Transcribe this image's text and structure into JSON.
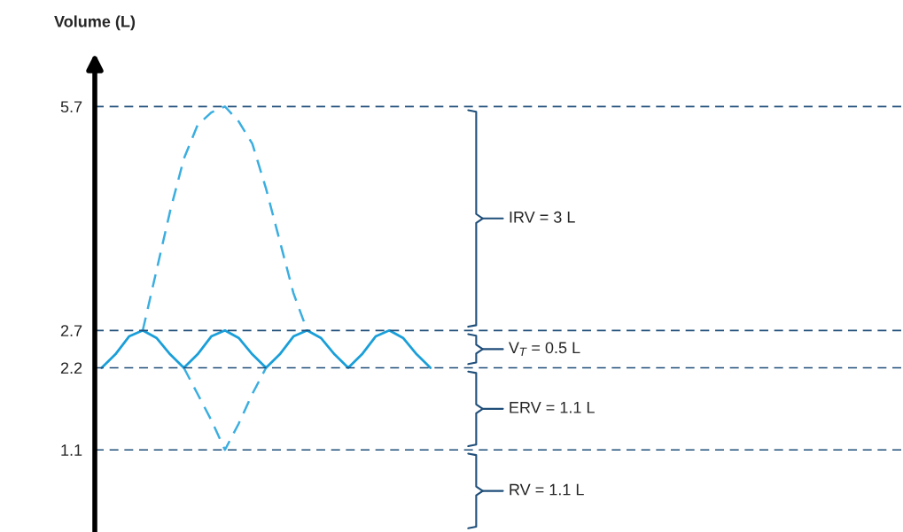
{
  "chart_data": {
    "type": "line",
    "ylabel": "Volume (L)",
    "categories": [
      null,
      null,
      null,
      null,
      null,
      null,
      null,
      null,
      null,
      null,
      null,
      null,
      null,
      null,
      null,
      null,
      null,
      null,
      null,
      null,
      null,
      null,
      null,
      null,
      null,
      null,
      null,
      null,
      null,
      null,
      null,
      null,
      null,
      null,
      null,
      null,
      null,
      null,
      null,
      null,
      null,
      null,
      null,
      null,
      null,
      null,
      null,
      null,
      null,
      null,
      null,
      null,
      null,
      null,
      null,
      null,
      null,
      null,
      null
    ],
    "series": [
      {
        "color": "#1a9fd9",
        "line_style": "solid",
        "values": [
          2.2,
          2.38,
          2.62,
          2.7,
          2.6,
          2.38,
          2.2,
          2.38,
          2.62,
          2.7,
          2.6,
          2.38,
          2.2,
          2.38,
          2.62,
          2.7,
          2.6,
          2.38,
          2.2,
          2.38,
          2.62,
          2.7,
          2.6,
          2.38,
          2.2,
          null,
          null,
          null,
          null,
          null,
          null,
          null,
          null,
          null,
          null,
          null,
          null,
          null,
          null,
          null,
          null,
          null,
          null,
          null,
          null,
          null,
          null,
          null,
          null,
          null,
          null,
          null,
          null,
          null,
          null,
          null,
          null,
          null,
          null
        ]
      },
      {
        "color": "#3aaee0",
        "line_style": "dashed",
        "values": [
          null,
          null,
          null,
          2.7,
          3.5,
          4.3,
          5.0,
          5.45,
          5.62,
          5.7,
          5.5,
          5.2,
          4.6,
          3.9,
          3.2,
          2.7,
          null,
          null,
          null,
          null,
          null,
          null,
          null,
          null,
          null,
          null,
          null,
          null,
          null,
          null,
          null,
          null,
          null,
          null,
          null,
          null,
          null,
          null,
          null,
          null,
          null,
          null,
          null,
          null,
          null,
          null,
          null,
          null,
          null,
          null,
          null,
          null,
          null,
          null,
          null,
          null,
          null,
          null,
          null
        ]
      },
      {
        "color": "#3aaee0",
        "line_style": "dashed",
        "values": [
          null,
          null,
          null,
          null,
          null,
          null,
          2.2,
          1.85,
          1.5,
          1.1,
          1.45,
          1.85,
          2.2,
          null,
          null,
          null,
          null,
          null,
          null,
          null,
          null,
          null,
          null,
          null,
          null,
          null,
          null,
          null,
          null,
          null,
          null,
          null,
          null,
          null,
          null,
          null,
          null,
          null,
          null,
          null,
          null,
          null,
          null,
          null,
          null,
          null,
          null,
          null,
          null,
          null,
          null,
          null,
          null,
          null,
          null,
          null,
          null,
          null,
          null
        ]
      }
    ],
    "ylim": [
      0,
      6.2
    ],
    "yticks": [
      1.1,
      2.2,
      2.7,
      5.7
    ],
    "tick_labels": "y",
    "legend": false,
    "grid": false,
    "ref_lines": [
      {
        "axis": "y",
        "value": 5.7,
        "color": "#1f4e79",
        "line_style": "dashed"
      },
      {
        "axis": "y",
        "value": 2.7,
        "color": "#1f4e79",
        "line_style": "dashed"
      },
      {
        "axis": "y",
        "value": 2.2,
        "color": "#1f4e79",
        "line_style": "dashed"
      },
      {
        "axis": "y",
        "value": 1.1,
        "color": "#1f4e79",
        "line_style": "dashed"
      }
    ],
    "annotations": [
      "IRV = 3 L",
      "V$_{T}$ = 0.5 L",
      "ERV = 1.1 L",
      "RV = 1.1 L"
    ]
  }
}
